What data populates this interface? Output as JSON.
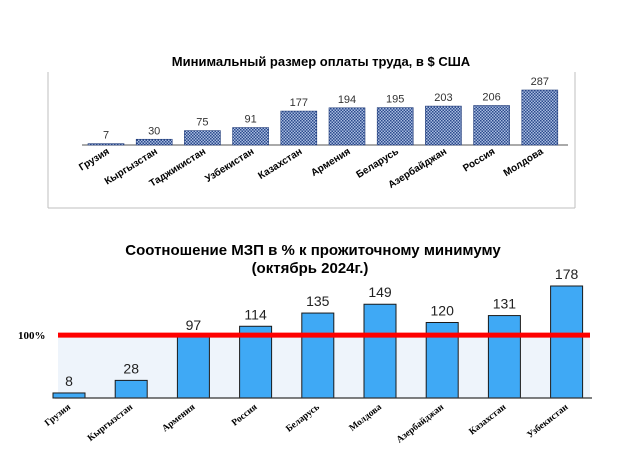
{
  "chart_data": [
    {
      "type": "bar",
      "title": "Минимальный размер оплаты труда, в $ США",
      "categories": [
        "Грузия",
        "Кыргызстан",
        "Таджикистан",
        "Узбекистан",
        "Казахстан",
        "Армения",
        "Беларусь",
        "Азербайджан",
        "Россия",
        "Молдова"
      ],
      "values": [
        7,
        30,
        75,
        91,
        177,
        194,
        195,
        203,
        206,
        287
      ],
      "ylim": [
        0,
        287
      ],
      "colors": {
        "bar_fill": "#a9bce0",
        "bar_pattern": "#2b4a8c",
        "bar_stroke": "#1f3a78",
        "frame": "#bfbfbf"
      },
      "grid": false
    },
    {
      "type": "bar",
      "title_line1": "Соотношение МЗП в % к прожиточному минимуму",
      "title_line2": "(октябрь 2024г.)",
      "categories": [
        "Грузия",
        "Кыргызстан",
        "Армения",
        "Россия",
        "Беларусь",
        "Молдова",
        "Азербайджан",
        "Казахстан",
        "Узбекистан"
      ],
      "values": [
        8,
        28,
        97,
        114,
        135,
        149,
        120,
        131,
        178
      ],
      "ylim": [
        0,
        178
      ],
      "reference_line": {
        "value": 100,
        "label": "100%",
        "color": "#ff0000"
      },
      "colors": {
        "bar_fill": "#3fa9f5",
        "bar_stroke": "#1a1a1a",
        "shade_below_ref": "#eef4fb"
      },
      "grid": false
    }
  ]
}
